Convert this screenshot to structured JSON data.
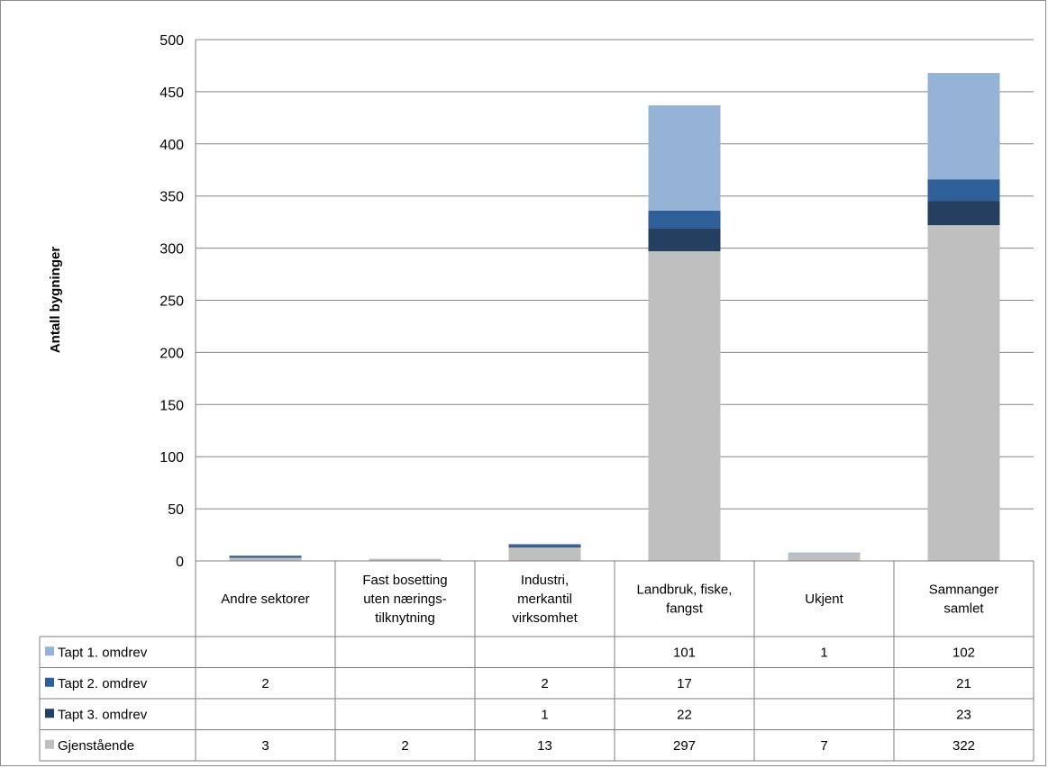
{
  "chart_data": {
    "type": "bar",
    "stacked": true,
    "ylabel": "Antall bygninger",
    "ylim": [
      0,
      500
    ],
    "y_ticks": [
      0,
      50,
      100,
      150,
      200,
      250,
      300,
      350,
      400,
      450,
      500
    ],
    "grid": true,
    "legend": "data-table",
    "categories": [
      [
        "Andre sektorer"
      ],
      [
        "Fast bosetting",
        "uten nærings-",
        "tilknytning"
      ],
      [
        "Industri,",
        "merkantil",
        "virksomhet"
      ],
      [
        "Landbruk, fiske,",
        "fangst"
      ],
      [
        "Ukjent"
      ],
      [
        "Samnanger",
        "samlet"
      ]
    ],
    "series": [
      {
        "name": "Gjenstående",
        "color": "#bfbfbf",
        "values": [
          3,
          2,
          13,
          297,
          7,
          322
        ]
      },
      {
        "name": "Tapt 3. omdrev",
        "color": "#243f60",
        "values": [
          null,
          null,
          1,
          22,
          null,
          23
        ]
      },
      {
        "name": "Tapt 2. omdrev",
        "color": "#2f5f98",
        "values": [
          2,
          null,
          2,
          17,
          null,
          21
        ]
      },
      {
        "name": "Tapt 1. omdrev",
        "color": "#95b3d7",
        "values": [
          null,
          null,
          null,
          101,
          1,
          102
        ]
      }
    ],
    "table_order": [
      "Tapt 1. omdrev",
      "Tapt 2. omdrev",
      "Tapt 3. omdrev",
      "Gjenstående"
    ]
  }
}
